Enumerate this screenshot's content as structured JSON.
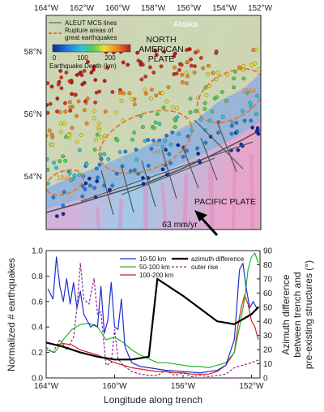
{
  "map": {
    "top_ticks": [
      "164°W",
      "162°W",
      "160°W",
      "158°W",
      "156°W",
      "154°W",
      "152°W"
    ],
    "lat_ticks": [
      "58°N",
      "56°N",
      "54°N"
    ],
    "legend": {
      "mcs_label": "ALEUT MCS lines",
      "rupture_label_1": "Rupture areas of",
      "rupture_label_2": "great earthquakes",
      "scale_ticks": [
        "0",
        "100",
        "200"
      ],
      "scale_title": "Earthquake Depth (km)"
    },
    "labels": {
      "alaska": "Alaska",
      "north_american_1": "NORTH",
      "north_american_2": "AMERICAN",
      "north_american_3": "PLATE",
      "pacific": "PACIFIC PLATE",
      "velocity": "63 mm/yr"
    },
    "colors": {
      "ocean_pink": "#e8a0c8",
      "ocean_blue": "#7fb2e0",
      "land": "#cfd8b4",
      "rupture": "#e07a2a"
    }
  },
  "chart_data": {
    "type": "line",
    "xlabel": "Longitude along trench",
    "ylabel": "Normalized # earthquakes",
    "ylabel_right_1": "Azimuth difference",
    "ylabel_right_2": "between trench and",
    "ylabel_right_3": "pre-existing structures (°)",
    "xlim": [
      -164,
      -151.5
    ],
    "ylim": [
      0,
      1
    ],
    "ylim_right": [
      0,
      90
    ],
    "x_tick_labels": [
      "164°W",
      "160°W",
      "156°W",
      "152°W"
    ],
    "y_tick_labels": [
      "0.0",
      "0.2",
      "0.4",
      "0.6",
      "0.8",
      "1.0"
    ],
    "y_right_tick_labels": [
      "0",
      "10",
      "20",
      "30",
      "40",
      "50",
      "60",
      "70",
      "80",
      "90"
    ],
    "legend_placement": "top-center",
    "series": [
      {
        "name": "10-50 km",
        "color": "#1f2fd0",
        "dash": "none",
        "axis": "left",
        "x": [
          -163.9,
          -163.6,
          -163.4,
          -163.2,
          -163.0,
          -162.8,
          -162.6,
          -162.4,
          -162.2,
          -162.0,
          -161.8,
          -161.6,
          -161.4,
          -161.2,
          -161.0,
          -160.8,
          -160.6,
          -160.4,
          -160.2,
          -160.0,
          -159.8,
          -159.6,
          -159.4,
          -159.2,
          -159.0,
          -158.5,
          -158.0,
          -157.0,
          -156.0,
          -155.0,
          -154.0,
          -153.5,
          -153.0,
          -152.7,
          -152.5,
          -152.3,
          -152.1,
          -151.9,
          -151.7
        ],
        "y": [
          0.7,
          0.62,
          0.95,
          0.72,
          0.6,
          0.78,
          0.58,
          0.75,
          0.55,
          0.68,
          0.5,
          0.45,
          0.4,
          0.42,
          0.4,
          0.72,
          0.35,
          0.45,
          0.75,
          0.4,
          0.38,
          0.62,
          0.25,
          0.18,
          0.12,
          0.09,
          0.08,
          0.06,
          0.05,
          0.04,
          0.06,
          0.1,
          0.3,
          0.85,
          0.9,
          0.7,
          0.55,
          0.6,
          0.55
        ]
      },
      {
        "name": "50-100 km",
        "color": "#22b722",
        "dash": "none",
        "axis": "left",
        "x": [
          -164.0,
          -163.5,
          -163.0,
          -162.5,
          -162.0,
          -161.5,
          -161.0,
          -160.5,
          -160.0,
          -159.5,
          -159.0,
          -158.5,
          -158.0,
          -157.5,
          -157.0,
          -156.5,
          -156.0,
          -155.5,
          -155.0,
          -154.5,
          -154.0,
          -153.5,
          -153.0,
          -152.7,
          -152.4,
          -152.2,
          -152.0,
          -151.8,
          -151.6
        ],
        "y": [
          0.22,
          0.2,
          0.3,
          0.38,
          0.42,
          0.43,
          0.4,
          0.3,
          0.32,
          0.28,
          0.22,
          0.18,
          0.15,
          0.12,
          0.12,
          0.11,
          0.1,
          0.09,
          0.09,
          0.08,
          0.1,
          0.12,
          0.2,
          0.4,
          0.62,
          0.85,
          0.95,
          0.98,
          0.9
        ]
      },
      {
        "name": "100-200 km",
        "color": "#d62020",
        "dash": "none",
        "axis": "left",
        "x": [
          -164.0,
          -163.5,
          -163.0,
          -162.5,
          -162.0,
          -161.5,
          -161.0,
          -160.5,
          -160.0,
          -159.5,
          -159.0,
          -158.5,
          -158.0,
          -157.5,
          -157.0,
          -156.5,
          -156.0,
          -155.5,
          -155.0,
          -154.5,
          -154.0,
          -153.5,
          -153.0,
          -152.8,
          -152.6,
          -152.4,
          -152.2,
          -152.0,
          -151.8,
          -151.6
        ],
        "y": [
          0.28,
          0.26,
          0.27,
          0.26,
          0.22,
          0.2,
          0.18,
          0.15,
          0.12,
          0.1,
          0.08,
          0.07,
          0.06,
          0.05,
          0.05,
          0.04,
          0.04,
          0.03,
          0.03,
          0.03,
          0.05,
          0.1,
          0.2,
          0.4,
          0.55,
          0.65,
          0.58,
          0.45,
          0.4,
          0.3
        ]
      },
      {
        "name": "outer rise",
        "color": "#8a2a8a",
        "dash": "3,2",
        "axis": "left",
        "x": [
          -164.0,
          -163.6,
          -163.2,
          -162.8,
          -162.4,
          -162.2,
          -162.0,
          -161.8,
          -161.5,
          -161.2,
          -161.0,
          -160.8,
          -160.5,
          -160.2,
          -160.0,
          -159.8,
          -159.5,
          -159.0,
          -158.5,
          -158.0,
          -157.5,
          -157.0,
          -156.5,
          -156.0,
          -155.5,
          -155.0,
          -154.5,
          -154.0,
          -153.5,
          -153.0,
          -152.5,
          -152.0,
          -151.6
        ],
        "y": [
          0.24,
          0.2,
          0.3,
          0.22,
          0.32,
          0.55,
          0.9,
          0.62,
          0.58,
          0.78,
          0.5,
          0.52,
          0.1,
          0.12,
          0.38,
          0.15,
          0.1,
          0.05,
          0.03,
          0.02,
          0.02,
          0.06,
          0.02,
          0.04,
          0.01,
          0.02,
          0.01,
          0.02,
          0.03,
          0.08,
          0.1,
          0.12,
          0.14
        ]
      },
      {
        "name": "azimuth difference",
        "color": "#000000",
        "dash": "none",
        "axis": "right",
        "width": 2.2,
        "x": [
          -164.0,
          -163.0,
          -162.0,
          -161.0,
          -160.0,
          -159.0,
          -158.0,
          -157.5,
          -156.0,
          -154.0,
          -153.0,
          -152.0,
          -151.6
        ],
        "y": [
          25,
          22,
          18,
          15,
          13,
          13,
          15,
          70,
          58,
          40,
          38,
          45,
          50
        ]
      }
    ]
  }
}
